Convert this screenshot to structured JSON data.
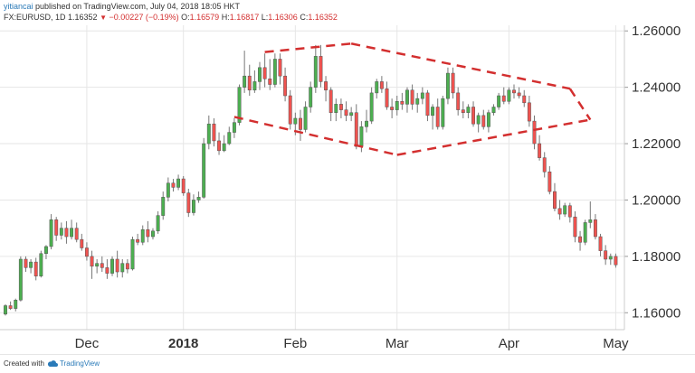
{
  "header": {
    "author": "yitiancai",
    "published_text": "published on TradingView.com, July 04, 2018 18:05 HKT",
    "symbol": "FX:EURUSD, 1D",
    "last_price": "1.16352",
    "change": "−0.00227 (−0.19%)",
    "open_label": "O:",
    "open_value": "1.16579",
    "high_label": "H:",
    "high_value": "1.16817",
    "low_label": "L:",
    "low_value": "1.16306",
    "close_label": "C:",
    "close_value": "1.16352"
  },
  "footer": {
    "created_with": "Created with",
    "brand": "TradingView"
  },
  "colors": {
    "up": "#4caf50",
    "down": "#ef5350",
    "wick": "#777777",
    "pattern": "#d32f2f",
    "grid": "#e6e6e6"
  },
  "chart_data": {
    "type": "candlestick",
    "symbol": "EURUSD",
    "timeframe": "1D",
    "ylim": [
      1.154,
      1.262
    ],
    "yticks": [
      "1.26000",
      "1.24000",
      "1.22000",
      "1.20000",
      "1.18000",
      "1.16000"
    ],
    "x_labels": [
      {
        "label": "Dec",
        "index": 16
      },
      {
        "label": "2018",
        "index": 35
      },
      {
        "label": "Feb",
        "index": 57
      },
      {
        "label": "Mar",
        "index": 77
      },
      {
        "label": "Apr",
        "index": 99
      },
      {
        "label": "May",
        "index": 120
      }
    ],
    "pattern_lines": [
      [
        [
          51,
          1.2525
        ],
        [
          68,
          1.2555
        ]
      ],
      [
        [
          68,
          1.2555
        ],
        [
          111,
          1.2395
        ]
      ],
      [
        [
          45,
          1.2295
        ],
        [
          77,
          1.216
        ]
      ],
      [
        [
          77,
          1.216
        ],
        [
          115,
          1.2285
        ]
      ],
      [
        [
          111,
          1.2395
        ],
        [
          115,
          1.2285
        ]
      ]
    ],
    "candles": [
      [
        1.1595,
        1.163,
        1.159,
        1.1625
      ],
      [
        1.1625,
        1.164,
        1.161,
        1.1615
      ],
      [
        1.1615,
        1.165,
        1.1605,
        1.1645
      ],
      [
        1.1645,
        1.18,
        1.164,
        1.179
      ],
      [
        1.179,
        1.18,
        1.1745,
        1.176
      ],
      [
        1.176,
        1.179,
        1.174,
        1.178
      ],
      [
        1.178,
        1.1795,
        1.1715,
        1.173
      ],
      [
        1.173,
        1.182,
        1.1725,
        1.181
      ],
      [
        1.181,
        1.184,
        1.179,
        1.1835
      ],
      [
        1.1835,
        1.195,
        1.1825,
        1.193
      ],
      [
        1.193,
        1.194,
        1.1855,
        1.1875
      ],
      [
        1.1875,
        1.192,
        1.186,
        1.19
      ],
      [
        1.19,
        1.1925,
        1.1845,
        1.187
      ],
      [
        1.187,
        1.193,
        1.186,
        1.19
      ],
      [
        1.19,
        1.192,
        1.185,
        1.186
      ],
      [
        1.186,
        1.188,
        1.182,
        1.183
      ],
      [
        1.183,
        1.185,
        1.1785,
        1.18
      ],
      [
        1.18,
        1.182,
        1.172,
        1.1765
      ],
      [
        1.1765,
        1.179,
        1.174,
        1.1775
      ],
      [
        1.1775,
        1.18,
        1.1745,
        1.176
      ],
      [
        1.176,
        1.179,
        1.172,
        1.174
      ],
      [
        1.174,
        1.18,
        1.173,
        1.179
      ],
      [
        1.179,
        1.182,
        1.1725,
        1.1745
      ],
      [
        1.1745,
        1.179,
        1.1725,
        1.1775
      ],
      [
        1.1775,
        1.179,
        1.174,
        1.1755
      ],
      [
        1.1755,
        1.187,
        1.175,
        1.186
      ],
      [
        1.186,
        1.188,
        1.184,
        1.185
      ],
      [
        1.185,
        1.191,
        1.184,
        1.1895
      ],
      [
        1.1895,
        1.1925,
        1.185,
        1.187
      ],
      [
        1.187,
        1.19,
        1.186,
        1.189
      ],
      [
        1.189,
        1.196,
        1.188,
        1.1945
      ],
      [
        1.1945,
        1.203,
        1.193,
        1.201
      ],
      [
        1.201,
        1.208,
        1.1995,
        1.206
      ],
      [
        1.206,
        1.2075,
        1.203,
        1.2045
      ],
      [
        1.2045,
        1.209,
        1.2035,
        1.2075
      ],
      [
        1.2075,
        1.2085,
        1.2015,
        1.2025
      ],
      [
        1.2025,
        1.204,
        1.194,
        1.1955
      ],
      [
        1.1955,
        1.202,
        1.1945,
        1.2
      ],
      [
        1.2,
        1.203,
        1.199,
        1.201
      ],
      [
        1.201,
        1.222,
        1.2005,
        1.22
      ],
      [
        1.22,
        1.23,
        1.218,
        1.227
      ],
      [
        1.227,
        1.229,
        1.219,
        1.221
      ],
      [
        1.221,
        1.224,
        1.216,
        1.2175
      ],
      [
        1.2175,
        1.223,
        1.217,
        1.22
      ],
      [
        1.22,
        1.226,
        1.2195,
        1.224
      ],
      [
        1.224,
        1.229,
        1.222,
        1.2275
      ],
      [
        1.2275,
        1.241,
        1.2265,
        1.24
      ],
      [
        1.24,
        1.253,
        1.238,
        1.244
      ],
      [
        1.244,
        1.248,
        1.237,
        1.239
      ],
      [
        1.239,
        1.246,
        1.238,
        1.242
      ],
      [
        1.242,
        1.249,
        1.239,
        1.247
      ],
      [
        1.247,
        1.252,
        1.24,
        1.243
      ],
      [
        1.243,
        1.25,
        1.239,
        1.241
      ],
      [
        1.241,
        1.252,
        1.24,
        1.25
      ],
      [
        1.25,
        1.252,
        1.241,
        1.244
      ],
      [
        1.244,
        1.247,
        1.235,
        1.237
      ],
      [
        1.237,
        1.239,
        1.225,
        1.227
      ],
      [
        1.227,
        1.231,
        1.223,
        1.229
      ],
      [
        1.229,
        1.232,
        1.221,
        1.225
      ],
      [
        1.225,
        1.235,
        1.224,
        1.233
      ],
      [
        1.233,
        1.242,
        1.231,
        1.24
      ],
      [
        1.24,
        1.255,
        1.238,
        1.251
      ],
      [
        1.251,
        1.255,
        1.24,
        1.242
      ],
      [
        1.242,
        1.244,
        1.235,
        1.239
      ],
      [
        1.239,
        1.24,
        1.228,
        1.231
      ],
      [
        1.231,
        1.236,
        1.228,
        1.234
      ],
      [
        1.234,
        1.236,
        1.229,
        1.232
      ],
      [
        1.232,
        1.235,
        1.228,
        1.23
      ],
      [
        1.23,
        1.233,
        1.228,
        1.231
      ],
      [
        1.231,
        1.234,
        1.218,
        1.219
      ],
      [
        1.219,
        1.228,
        1.217,
        1.226
      ],
      [
        1.226,
        1.232,
        1.224,
        1.228
      ],
      [
        1.228,
        1.24,
        1.227,
        1.238
      ],
      [
        1.238,
        1.243,
        1.236,
        1.242
      ],
      [
        1.242,
        1.244,
        1.238,
        1.2395
      ],
      [
        1.2395,
        1.242,
        1.232,
        1.233
      ],
      [
        1.233,
        1.236,
        1.229,
        1.232
      ],
      [
        1.232,
        1.237,
        1.23,
        1.235
      ],
      [
        1.235,
        1.238,
        1.232,
        1.234
      ],
      [
        1.234,
        1.24,
        1.231,
        1.239
      ],
      [
        1.239,
        1.241,
        1.232,
        1.234
      ],
      [
        1.234,
        1.238,
        1.231,
        1.236
      ],
      [
        1.236,
        1.24,
        1.234,
        1.238
      ],
      [
        1.238,
        1.239,
        1.228,
        1.23
      ],
      [
        1.23,
        1.234,
        1.225,
        1.233
      ],
      [
        1.233,
        1.236,
        1.225,
        1.226
      ],
      [
        1.226,
        1.237,
        1.225,
        1.236
      ],
      [
        1.236,
        1.247,
        1.234,
        1.245
      ],
      [
        1.245,
        1.247,
        1.236,
        1.238
      ],
      [
        1.238,
        1.24,
        1.23,
        1.232
      ],
      [
        1.232,
        1.235,
        1.229,
        1.231
      ],
      [
        1.231,
        1.234,
        1.229,
        1.233
      ],
      [
        1.233,
        1.235,
        1.226,
        1.227
      ],
      [
        1.227,
        1.231,
        1.224,
        1.23
      ],
      [
        1.23,
        1.232,
        1.225,
        1.226
      ],
      [
        1.226,
        1.232,
        1.224,
        1.231
      ],
      [
        1.231,
        1.234,
        1.23,
        1.233
      ],
      [
        1.233,
        1.238,
        1.232,
        1.237
      ],
      [
        1.237,
        1.24,
        1.234,
        1.235
      ],
      [
        1.235,
        1.24,
        1.234,
        1.239
      ],
      [
        1.239,
        1.241,
        1.236,
        1.238
      ],
      [
        1.238,
        1.24,
        1.236,
        1.237
      ],
      [
        1.237,
        1.239,
        1.233,
        1.2345
      ],
      [
        1.2345,
        1.237,
        1.226,
        1.228
      ],
      [
        1.228,
        1.23,
        1.218,
        1.22
      ],
      [
        1.22,
        1.223,
        1.214,
        1.215
      ],
      [
        1.215,
        1.217,
        1.208,
        1.21
      ],
      [
        1.21,
        1.212,
        1.202,
        1.203
      ],
      [
        1.203,
        1.206,
        1.196,
        1.197
      ],
      [
        1.197,
        1.2,
        1.193,
        1.195
      ],
      [
        1.195,
        1.199,
        1.194,
        1.198
      ],
      [
        1.198,
        1.199,
        1.192,
        1.194
      ],
      [
        1.194,
        1.196,
        1.185,
        1.187
      ],
      [
        1.187,
        1.189,
        1.182,
        1.185
      ],
      [
        1.185,
        1.193,
        1.184,
        1.192
      ],
      [
        1.192,
        1.1995,
        1.19,
        1.193
      ],
      [
        1.193,
        1.195,
        1.186,
        1.187
      ],
      [
        1.187,
        1.188,
        1.18,
        1.182
      ],
      [
        1.182,
        1.184,
        1.177,
        1.179
      ],
      [
        1.179,
        1.181,
        1.177,
        1.18
      ],
      [
        1.18,
        1.181,
        1.176,
        1.177
      ]
    ]
  }
}
